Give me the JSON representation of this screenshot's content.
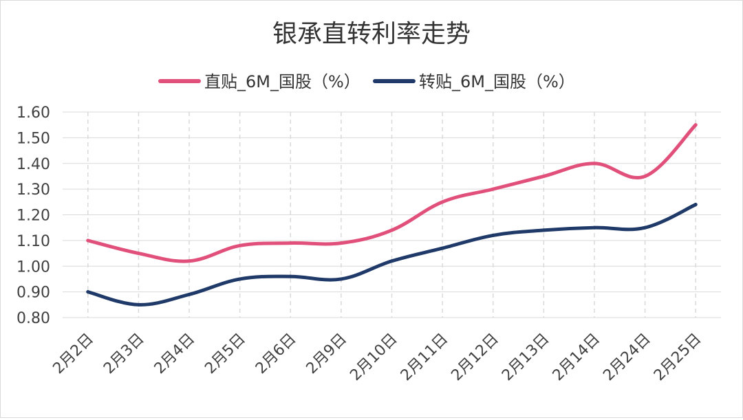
{
  "chart_data": {
    "type": "line",
    "title": "银承直转利率走势",
    "xlabel": "",
    "ylabel": "",
    "categories": [
      "2月2日",
      "2月3日",
      "2月4日",
      "2月5日",
      "2月6日",
      "2月9日",
      "2月10日",
      "2月11日",
      "2月12日",
      "2月13日",
      "2月14日",
      "2月24日",
      "2月25日"
    ],
    "series": [
      {
        "name": "直贴_6M_国股（%）",
        "color": "#e0507a",
        "values": [
          1.1,
          1.05,
          1.02,
          1.08,
          1.09,
          1.09,
          1.14,
          1.25,
          1.3,
          1.35,
          1.4,
          1.35,
          1.55
        ]
      },
      {
        "name": "转贴_6M_国股（%）",
        "color": "#1f3a68",
        "values": [
          0.9,
          0.85,
          0.89,
          0.95,
          0.96,
          0.95,
          1.02,
          1.07,
          1.12,
          1.14,
          1.15,
          1.15,
          1.24
        ]
      }
    ],
    "ylim": [
      0.8,
      1.6
    ],
    "yticks": [
      "0.80",
      "0.90",
      "1.00",
      "1.10",
      "1.20",
      "1.30",
      "1.40",
      "1.50",
      "1.60"
    ],
    "grid": true,
    "legend_position": "top"
  }
}
